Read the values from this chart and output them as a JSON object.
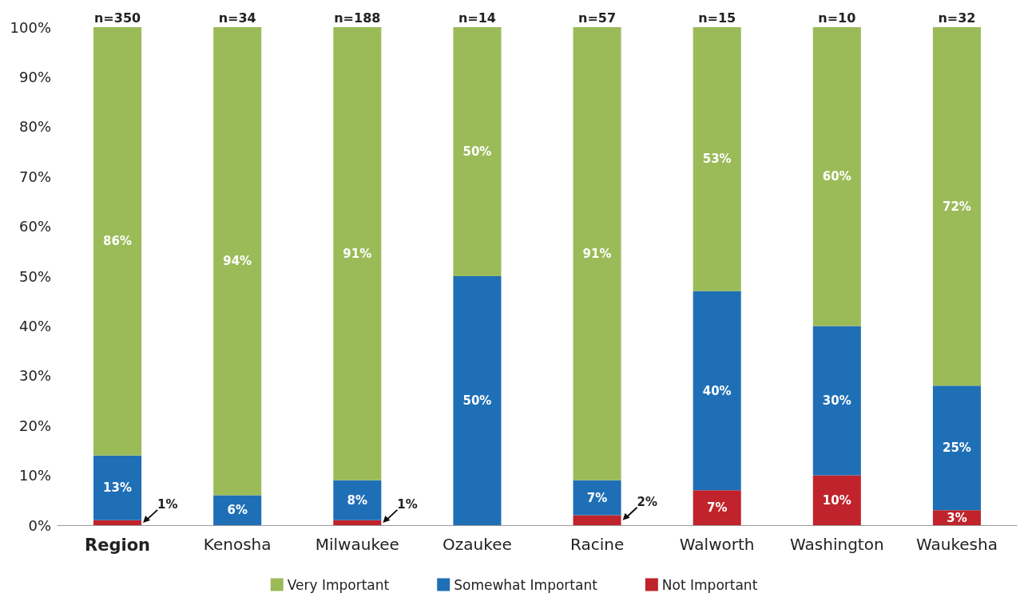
{
  "chart_data": {
    "type": "bar",
    "stacked": true,
    "categories": [
      "Region",
      "Kenosha",
      "Milwaukee",
      "Ozaukee",
      "Racine",
      "Walworth",
      "Washington",
      "Waukesha"
    ],
    "series": [
      {
        "name": "Not Important",
        "color": "#c0232b",
        "values": [
          1,
          0,
          1,
          0,
          2,
          7,
          10,
          3
        ],
        "value_labels": [
          "1%",
          null,
          "1%",
          null,
          "2%",
          "7%",
          "10%",
          "3%"
        ]
      },
      {
        "name": "Somewhat Important",
        "color": "#1f6fb6",
        "values": [
          13,
          6,
          8,
          50,
          7,
          40,
          30,
          25
        ],
        "value_labels": [
          "13%",
          "6%",
          "8%",
          "50%",
          "7%",
          "40%",
          "30%",
          "25%"
        ]
      },
      {
        "name": "Very Important",
        "color": "#9bbb59",
        "values": [
          86,
          94,
          91,
          50,
          91,
          53,
          60,
          72
        ],
        "value_labels": [
          "86%",
          "94%",
          "91%",
          "50%",
          "91%",
          "53%",
          "60%",
          "72%"
        ]
      }
    ],
    "annotations": [
      "n=350",
      "n=34",
      "n=188",
      "n=14",
      "n=57",
      "n=15",
      "n=10",
      "n=32"
    ],
    "ylim": [
      0,
      100
    ],
    "yticks": [
      {
        "value": 0,
        "label": "0%"
      },
      {
        "value": 10,
        "label": "10%"
      },
      {
        "value": 20,
        "label": "20%"
      },
      {
        "value": 30,
        "label": "30%"
      },
      {
        "value": 40,
        "label": "40%"
      },
      {
        "value": 50,
        "label": "50%"
      },
      {
        "value": 60,
        "label": "60%"
      },
      {
        "value": 70,
        "label": "70%"
      },
      {
        "value": 80,
        "label": "80%"
      },
      {
        "value": 90,
        "label": "90%"
      },
      {
        "value": 100,
        "label": "100%"
      }
    ],
    "grid": false,
    "legend": "bottom"
  }
}
